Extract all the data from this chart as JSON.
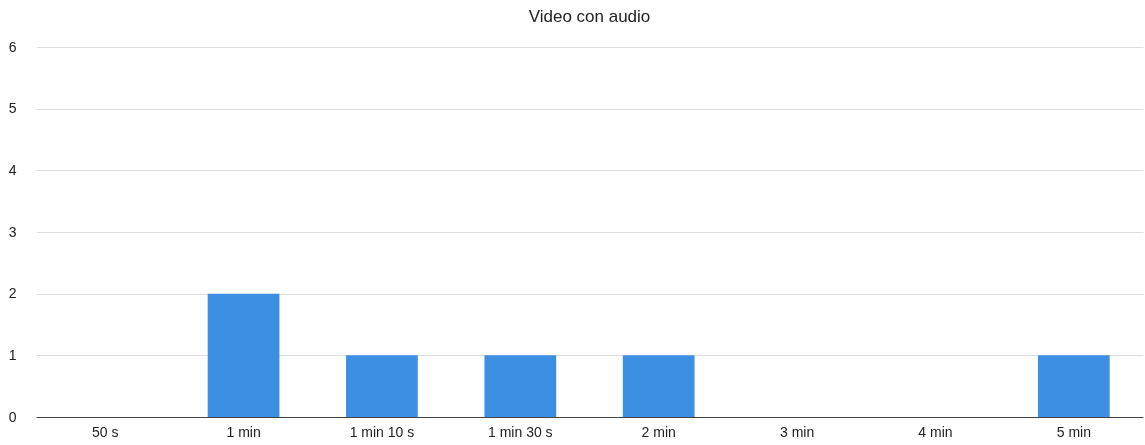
{
  "chart_data": {
    "type": "bar",
    "title": "Video con audio",
    "categories": [
      "50 s",
      "1 min",
      "1 min 10 s",
      "1 min 30 s",
      "2 min",
      "3 min",
      "4 min",
      "5 min"
    ],
    "values": [
      0,
      2,
      1,
      1,
      1,
      0,
      0,
      1
    ],
    "color": "#3d8fe3",
    "ylim": [
      0,
      6
    ],
    "yticks": [
      0,
      1,
      2,
      3,
      4,
      5,
      6
    ],
    "grid": "y"
  }
}
